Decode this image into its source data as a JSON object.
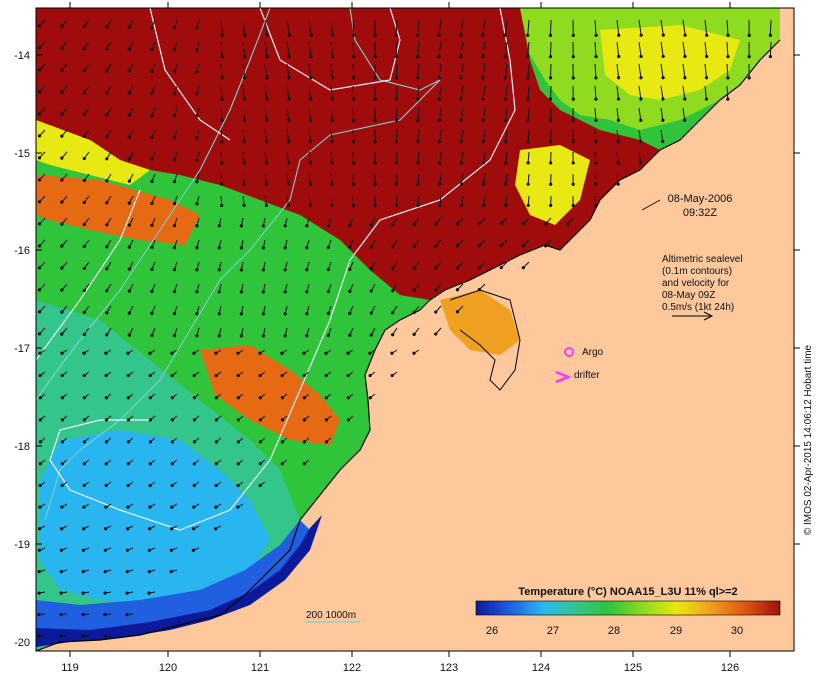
{
  "map": {
    "x_axis": {
      "ticks": [
        "119",
        "120",
        "121",
        "122",
        "123",
        "124",
        "125",
        "126"
      ]
    },
    "y_axis": {
      "ticks": [
        "-14",
        "-15",
        "-16",
        "-17",
        "-18",
        "-19",
        "-20"
      ]
    },
    "colors": {
      "land": "#fcc89c",
      "coast": "#000000",
      "isobath_200": "#7fd0d0",
      "sea_level_contour": "#e8f4ff",
      "velocity_arrow": "#111111",
      "argo": "#ff33ff",
      "drifter": "#ff33ff"
    }
  },
  "annotations": {
    "date": "08-May-2006",
    "time": "09:32Z",
    "altimetry_lines": [
      "Altimetric sealevel",
      "(0.1m contours)",
      "and velocity for",
      "08-May 09Z",
      "0.5m/s (1kt 24h)"
    ],
    "argo_label": "Argo",
    "drifter_label": "drifter",
    "isobath_label": "200  1000m",
    "credit": "© IMOS 02-Apr-2015 14:06:12 Hobart time"
  },
  "colorbar": {
    "title": "Temperature (°C) NOAA15_L3U 11% ql>=2",
    "ticks": [
      "26",
      "27",
      "28",
      "29",
      "30"
    ],
    "stops": [
      "#0a1a9a",
      "#1f5fe0",
      "#29b6f0",
      "#33c58a",
      "#2fc43a",
      "#8fdb1f",
      "#e8e812",
      "#f0a020",
      "#e05a12",
      "#a01010"
    ]
  }
}
